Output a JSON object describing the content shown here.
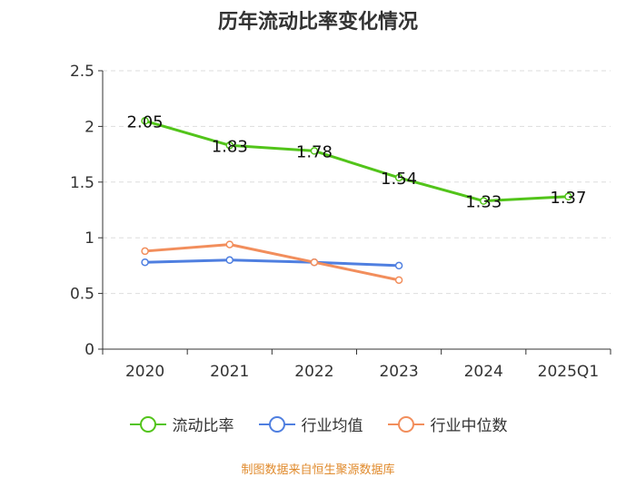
{
  "page": {
    "title": "历年流动比率变化情况",
    "source": "制图数据来自恒生聚源数据库"
  },
  "chart_data": {
    "type": "line",
    "title": "历年流动比率变化情况",
    "categories": [
      "2020",
      "2021",
      "2022",
      "2023",
      "2024",
      "2025Q1"
    ],
    "ylim": [
      0,
      2.5
    ],
    "yticks": [
      "0",
      "0.5",
      "1",
      "1.5",
      "2",
      "2.5"
    ],
    "grid": true,
    "legend_position": "bottom",
    "series": [
      {
        "name": "流动比率",
        "color": "#52c41a",
        "values": [
          2.05,
          1.83,
          1.78,
          1.54,
          1.33,
          1.37
        ],
        "labels": [
          "2.05",
          "1.83",
          "1.78",
          "1.54",
          "1.33",
          "1.37"
        ]
      },
      {
        "name": "行业均值",
        "color": "#4f7fe0",
        "values": [
          0.78,
          0.8,
          0.78,
          0.75,
          null,
          null
        ]
      },
      {
        "name": "行业中位数",
        "color": "#f28e5c",
        "values": [
          0.88,
          0.94,
          0.78,
          0.62,
          null,
          null
        ]
      }
    ]
  }
}
